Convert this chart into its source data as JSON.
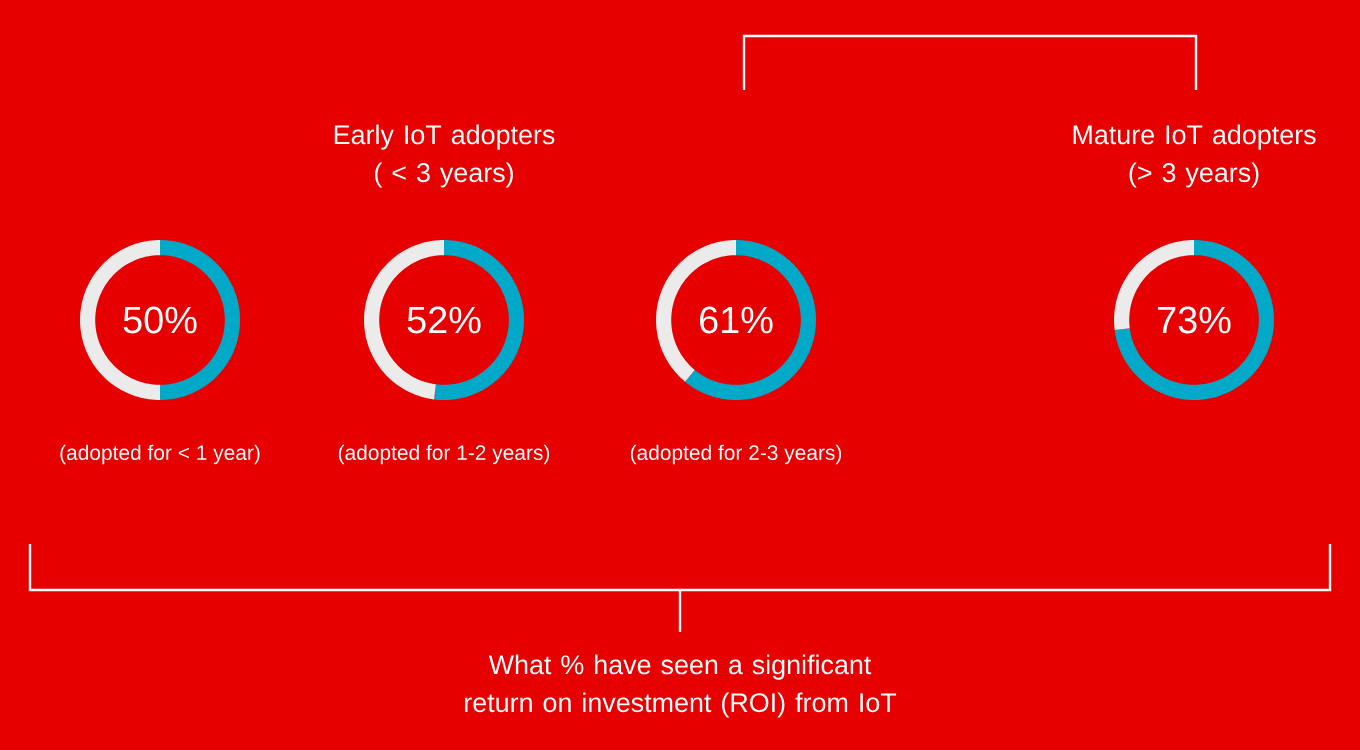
{
  "chart_data": [
    {
      "type": "donut",
      "categories": [
        null,
        null
      ],
      "values": [
        50,
        50
      ],
      "colors": [
        "#00a9c8",
        "#ebebeb"
      ],
      "value_labels": [
        "50%",
        null
      ],
      "xlabel": "(adopted for < 1 year)"
    },
    {
      "type": "donut",
      "categories": [
        null,
        null
      ],
      "values": [
        52,
        48
      ],
      "colors": [
        "#00a9c8",
        "#ebebeb"
      ],
      "value_labels": [
        "52%",
        null
      ],
      "xlabel": "(adopted for 1-2 years)"
    },
    {
      "type": "donut",
      "categories": [
        null,
        null
      ],
      "values": [
        61,
        39
      ],
      "colors": [
        "#00a9c8",
        "#ebebeb"
      ],
      "value_labels": [
        "61%",
        null
      ],
      "xlabel": "(adopted for 2-3 years)"
    },
    {
      "type": "donut",
      "categories": [
        null,
        null
      ],
      "values": [
        73,
        27
      ],
      "colors": [
        "#00a9c8",
        "#ebebeb"
      ],
      "value_labels": [
        "73%",
        null
      ],
      "title": "Mature IoT adopters (> 3 years)"
    },
    {
      "type": "other",
      "title": "Early IoT adopters ( < 3 years)",
      "annotations": [
        "What % have seen a significant return on investment (ROI) from IoT"
      ]
    }
  ]
}
